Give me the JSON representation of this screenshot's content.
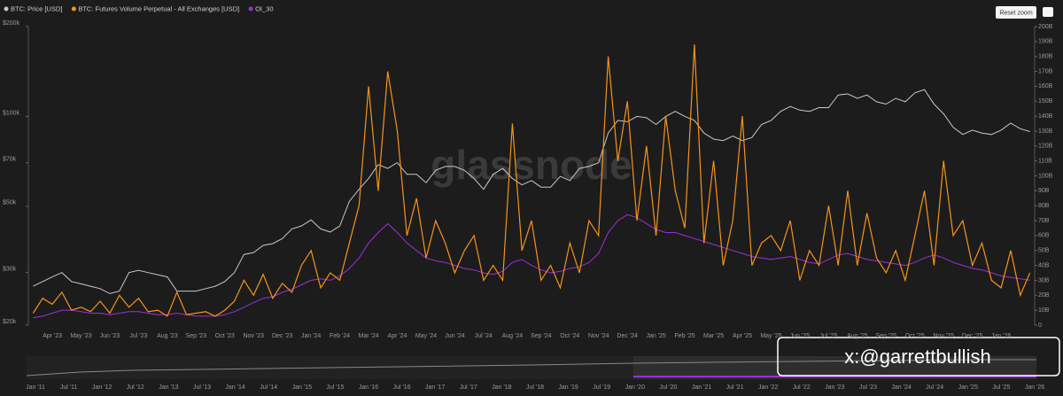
{
  "chart_data": {
    "type": "line",
    "legend": "top-left",
    "reset_label": "Reset zoom",
    "watermark": "glassnode",
    "credit": "x:@garrettbullish",
    "log_y": true,
    "categories": [
      null,
      null,
      "Apr '23",
      null,
      null,
      "May '23",
      null,
      null,
      "Jun '23",
      null,
      null,
      "Jul '23",
      null,
      null,
      "Aug '23",
      null,
      null,
      "Sep '23",
      null,
      null,
      "Oct '23",
      null,
      null,
      "Nov '23",
      null,
      null,
      "Dec '23",
      null,
      null,
      "Jan '24",
      null,
      null,
      "Feb '24",
      null,
      null,
      "Mar '24",
      null,
      null,
      "Apr '24",
      null,
      null,
      "May '24",
      null,
      null,
      "Jun '24",
      null,
      null,
      "Jul '24",
      null,
      null,
      "Aug '24",
      null,
      null,
      "Sep '24",
      null,
      null,
      "Oct '24",
      null,
      null,
      "Nov '24",
      null,
      null,
      "Dec '24",
      null,
      null,
      "Jan '25",
      null,
      null,
      "Feb '25",
      null,
      null,
      "Mar '25",
      null,
      null,
      "Apr '25",
      null,
      null,
      "May '25",
      null,
      null,
      "Jun '25",
      null,
      null,
      "Jul '25",
      null,
      null,
      "Aug '25",
      null,
      null,
      "Sep '25",
      null,
      null,
      "Oct '25",
      null,
      null,
      "Nov '25",
      null,
      null,
      "Dec '25",
      null,
      null,
      "Jan '26",
      null,
      null,
      null
    ],
    "series": [
      {
        "name": "BTC: Price [USD]",
        "color": "#c9c9c9",
        "axis": "y",
        "values": [
          27000,
          28000,
          29000,
          30000,
          28000,
          27500,
          27000,
          26500,
          25500,
          26000,
          30000,
          30500,
          30000,
          29500,
          29000,
          26000,
          26000,
          26000,
          26500,
          27000,
          28000,
          30000,
          34500,
          35000,
          37000,
          37500,
          39000,
          42000,
          43000,
          45000,
          42000,
          41000,
          43000,
          52000,
          57000,
          62000,
          69000,
          67000,
          70000,
          64000,
          64000,
          60000,
          66000,
          68000,
          68000,
          66000,
          62000,
          57000,
          64000,
          67000,
          62000,
          59000,
          61000,
          58000,
          58000,
          63000,
          61000,
          67000,
          68000,
          70000,
          88000,
          97000,
          96000,
          100000,
          99000,
          94000,
          100000,
          104000,
          100000,
          97000,
          88000,
          84000,
          83000,
          86000,
          83000,
          85000,
          94000,
          97000,
          104000,
          108000,
          105000,
          104000,
          107000,
          107000,
          118000,
          119000,
          115000,
          118000,
          112000,
          110000,
          115000,
          112000,
          120000,
          123000,
          110000,
          102000,
          92000,
          87000,
          90000,
          88000,
          87000,
          90000,
          95000,
          91000,
          89000
        ]
      },
      {
        "name": "BTC: Futures Volume Perpetual - All Exchanges [USD]",
        "color": "#f7931a",
        "axis": "y2",
        "values": [
          8,
          18,
          14,
          22,
          10,
          12,
          9,
          16,
          8,
          20,
          12,
          18,
          9,
          10,
          6,
          22,
          7,
          8,
          9,
          6,
          10,
          16,
          30,
          20,
          34,
          18,
          28,
          22,
          40,
          50,
          25,
          35,
          30,
          55,
          80,
          160,
          90,
          170,
          130,
          60,
          85,
          45,
          70,
          55,
          35,
          50,
          60,
          30,
          40,
          30,
          135,
          50,
          70,
          30,
          40,
          25,
          55,
          35,
          70,
          60,
          180,
          110,
          150,
          70,
          120,
          60,
          140,
          90,
          65,
          188,
          55,
          110,
          40,
          70,
          140,
          40,
          55,
          60,
          50,
          70,
          30,
          50,
          40,
          80,
          40,
          90,
          40,
          75,
          45,
          35,
          50,
          30,
          60,
          90,
          40,
          110,
          60,
          70,
          40,
          55,
          30,
          25,
          50,
          20,
          35
        ]
      },
      {
        "name": "OI_30",
        "color": "#9b30d9",
        "axis": "y2",
        "values": [
          5,
          6,
          8,
          10,
          10,
          9,
          8,
          8,
          7,
          8,
          9,
          9,
          8,
          7,
          7,
          8,
          7,
          6,
          6,
          6,
          7,
          9,
          12,
          15,
          18,
          19,
          22,
          24,
          27,
          30,
          31,
          30,
          33,
          38,
          45,
          55,
          62,
          68,
          62,
          55,
          50,
          45,
          43,
          42,
          40,
          38,
          37,
          35,
          34,
          36,
          42,
          44,
          40,
          37,
          35,
          36,
          38,
          39,
          42,
          48,
          62,
          70,
          74,
          72,
          68,
          64,
          62,
          62,
          60,
          58,
          56,
          54,
          52,
          50,
          48,
          46,
          45,
          44,
          45,
          46,
          44,
          42,
          41,
          44,
          47,
          48,
          46,
          44,
          43,
          42,
          41,
          40,
          42,
          45,
          47,
          45,
          42,
          40,
          38,
          37,
          35,
          33,
          32,
          31,
          30
        ]
      }
    ],
    "ylim": [
      20000,
      200000
    ],
    "yticks": [
      {
        "value": 20000,
        "label": "$20k"
      },
      {
        "value": 30000,
        "label": "$30k"
      },
      {
        "value": 50000,
        "label": "$50k"
      },
      {
        "value": 70000,
        "label": "$70k"
      },
      {
        "value": 100000,
        "label": "$100k"
      },
      {
        "value": 200000,
        "label": "$200k"
      }
    ],
    "y2lim": [
      0,
      200
    ],
    "y2ticks": [
      0,
      {
        "value": 10,
        "label": "10B"
      },
      {
        "value": 20,
        "label": "20B"
      },
      {
        "value": 30,
        "label": "30B"
      },
      {
        "value": 40,
        "label": "40B"
      },
      {
        "value": 50,
        "label": "50B"
      },
      {
        "value": 60,
        "label": "60B"
      },
      {
        "value": 70,
        "label": "70B"
      },
      {
        "value": 80,
        "label": "80B"
      },
      {
        "value": 90,
        "label": "90B"
      },
      {
        "value": 100,
        "label": "100B"
      },
      {
        "value": 110,
        "label": "110B"
      },
      {
        "value": 120,
        "label": "120B"
      },
      {
        "value": 130,
        "label": "130B"
      },
      {
        "value": 140,
        "label": "140B"
      },
      {
        "value": 150,
        "label": "150B"
      },
      {
        "value": 160,
        "label": "160B"
      },
      {
        "value": 170,
        "label": "170B"
      },
      {
        "value": 180,
        "label": "180B"
      },
      {
        "value": 190,
        "label": "190B"
      },
      {
        "value": 200,
        "label": "200B"
      }
    ],
    "navigator_labels": [
      "Jan '11",
      "Jul '11",
      "Jan '12",
      "Jul '12",
      "Jan '13",
      "Jul '13",
      "Jan '14",
      "Jul '14",
      "Jan '15",
      "Jul '15",
      "Jan '16",
      "Jul '16",
      "Jan '17",
      "Jul '17",
      "Jan '18",
      "Jul '18",
      "Jan '19",
      "Jul '19",
      "Jan '20",
      "Jul '20",
      "Jan '21",
      "Jul '21",
      "Jan '22",
      "Jul '22",
      "Jan '23",
      "Jul '23",
      "Jan '24",
      "Jul '24",
      "Jan '25",
      "Jul '25",
      "Jan '26"
    ]
  }
}
